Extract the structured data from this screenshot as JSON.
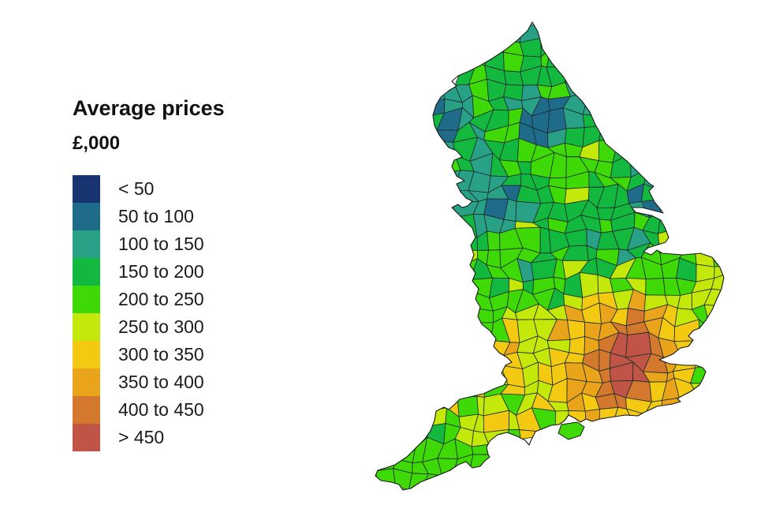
{
  "legend": {
    "title": "Average prices",
    "unit": "£,000",
    "bands": [
      {
        "label": "< 50",
        "color": "#183572"
      },
      {
        "label": "50 to 100",
        "color": "#1f6c8a"
      },
      {
        "label": "100 to 150",
        "color": "#28a187"
      },
      {
        "label": "150 to 200",
        "color": "#13b83e"
      },
      {
        "label": "200 to 250",
        "color": "#3fd908"
      },
      {
        "label": "250 to 300",
        "color": "#c5e80b"
      },
      {
        "label": "300 to 350",
        "color": "#f3c912"
      },
      {
        "label": "350 to 400",
        "color": "#e9a41b"
      },
      {
        "label": "400 to 450",
        "color": "#d4782d"
      },
      {
        "label": "> 450",
        "color": "#c05547"
      }
    ]
  },
  "map": {
    "background": "#ffffff",
    "outline_color": "#161616",
    "district_boundary_color": "#1c2b2b"
  }
}
